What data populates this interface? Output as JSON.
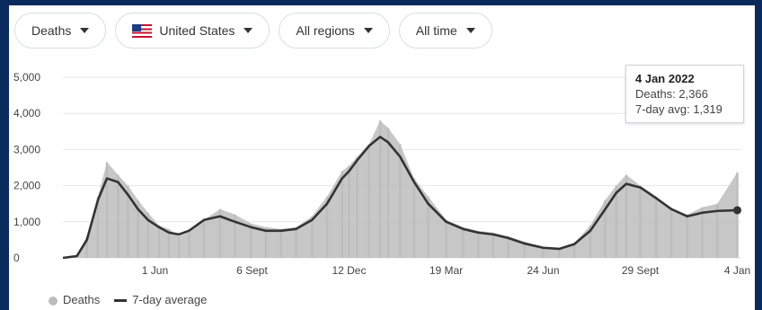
{
  "controls": {
    "metric": "Deaths",
    "country": "United States",
    "region": "All regions",
    "time": "All time"
  },
  "icons": {
    "caret": "chevron-down-icon",
    "flag": "us-flag-icon"
  },
  "colors": {
    "bars": "#bdbdbd",
    "line": "#333333",
    "background_frame": "#0a2a5e"
  },
  "tooltip": {
    "date": "4 Jan 2022",
    "deaths": "Deaths: 2,366",
    "avg": "7-day avg: 1,319"
  },
  "legend": {
    "deaths": "Deaths",
    "avg": "7-day average"
  },
  "chart_data": {
    "type": "bar",
    "series": [
      {
        "name": "Deaths",
        "type": "bar",
        "color": "#bdbdbd",
        "points": [
          [
            "2020-03-01",
            0
          ],
          [
            "2020-03-15",
            80
          ],
          [
            "2020-03-25",
            600
          ],
          [
            "2020-04-05",
            1700
          ],
          [
            "2020-04-14",
            2650
          ],
          [
            "2020-04-25",
            2300
          ],
          [
            "2020-05-05",
            2000
          ],
          [
            "2020-05-15",
            1600
          ],
          [
            "2020-05-25",
            1250
          ],
          [
            "2020-06-05",
            900
          ],
          [
            "2020-06-15",
            800
          ],
          [
            "2020-06-25",
            600
          ],
          [
            "2020-07-05",
            700
          ],
          [
            "2020-07-20",
            1050
          ],
          [
            "2020-08-05",
            1350
          ],
          [
            "2020-08-20",
            1200
          ],
          [
            "2020-09-05",
            950
          ],
          [
            "2020-09-20",
            850
          ],
          [
            "2020-10-05",
            800
          ],
          [
            "2020-10-20",
            850
          ],
          [
            "2020-11-05",
            1150
          ],
          [
            "2020-11-20",
            1700
          ],
          [
            "2020-12-05",
            2400
          ],
          [
            "2020-12-12",
            2550
          ],
          [
            "2020-12-20",
            2800
          ],
          [
            "2021-01-01",
            3150
          ],
          [
            "2021-01-12",
            3800
          ],
          [
            "2021-01-20",
            3600
          ],
          [
            "2021-02-01",
            3150
          ],
          [
            "2021-02-15",
            2200
          ],
          [
            "2021-03-01",
            1700
          ],
          [
            "2021-03-19",
            1050
          ],
          [
            "2021-04-05",
            850
          ],
          [
            "2021-04-20",
            750
          ],
          [
            "2021-05-05",
            700
          ],
          [
            "2021-05-20",
            600
          ],
          [
            "2021-06-05",
            450
          ],
          [
            "2021-06-24",
            300
          ],
          [
            "2021-07-10",
            250
          ],
          [
            "2021-07-25",
            400
          ],
          [
            "2021-08-10",
            900
          ],
          [
            "2021-08-25",
            1600
          ],
          [
            "2021-09-05",
            2000
          ],
          [
            "2021-09-15",
            2300
          ],
          [
            "2021-09-29",
            2000
          ],
          [
            "2021-10-15",
            1700
          ],
          [
            "2021-10-30",
            1350
          ],
          [
            "2021-11-15",
            1200
          ],
          [
            "2021-11-30",
            1400
          ],
          [
            "2021-12-15",
            1500
          ],
          [
            "2022-01-04",
            2366
          ]
        ]
      },
      {
        "name": "7-day average",
        "type": "line",
        "color": "#333333",
        "points": [
          [
            "2020-03-01",
            0
          ],
          [
            "2020-03-15",
            50
          ],
          [
            "2020-03-25",
            500
          ],
          [
            "2020-04-05",
            1600
          ],
          [
            "2020-04-14",
            2200
          ],
          [
            "2020-04-25",
            2100
          ],
          [
            "2020-05-05",
            1750
          ],
          [
            "2020-05-15",
            1350
          ],
          [
            "2020-05-25",
            1050
          ],
          [
            "2020-06-05",
            850
          ],
          [
            "2020-06-15",
            700
          ],
          [
            "2020-06-25",
            650
          ],
          [
            "2020-07-05",
            750
          ],
          [
            "2020-07-20",
            1050
          ],
          [
            "2020-08-05",
            1150
          ],
          [
            "2020-08-20",
            1000
          ],
          [
            "2020-09-05",
            850
          ],
          [
            "2020-09-20",
            750
          ],
          [
            "2020-10-05",
            750
          ],
          [
            "2020-10-20",
            800
          ],
          [
            "2020-11-05",
            1050
          ],
          [
            "2020-11-20",
            1500
          ],
          [
            "2020-12-05",
            2200
          ],
          [
            "2020-12-12",
            2400
          ],
          [
            "2020-12-20",
            2700
          ],
          [
            "2021-01-01",
            3100
          ],
          [
            "2021-01-12",
            3350
          ],
          [
            "2021-01-20",
            3200
          ],
          [
            "2021-02-01",
            2800
          ],
          [
            "2021-02-15",
            2100
          ],
          [
            "2021-03-01",
            1500
          ],
          [
            "2021-03-19",
            1000
          ],
          [
            "2021-04-05",
            800
          ],
          [
            "2021-04-20",
            700
          ],
          [
            "2021-05-05",
            650
          ],
          [
            "2021-05-20",
            550
          ],
          [
            "2021-06-05",
            400
          ],
          [
            "2021-06-24",
            280
          ],
          [
            "2021-07-10",
            250
          ],
          [
            "2021-07-25",
            380
          ],
          [
            "2021-08-10",
            750
          ],
          [
            "2021-08-25",
            1350
          ],
          [
            "2021-09-05",
            1800
          ],
          [
            "2021-09-15",
            2050
          ],
          [
            "2021-09-29",
            1950
          ],
          [
            "2021-10-15",
            1650
          ],
          [
            "2021-10-30",
            1350
          ],
          [
            "2021-11-15",
            1150
          ],
          [
            "2021-11-30",
            1250
          ],
          [
            "2021-12-15",
            1300
          ],
          [
            "2022-01-04",
            1319
          ]
        ]
      }
    ],
    "title": "",
    "xlabel": "",
    "ylabel": "",
    "ylim": [
      0,
      5000
    ],
    "y_ticks": [
      "0",
      "1,000",
      "2,000",
      "3,000",
      "4,000",
      "5,000"
    ],
    "x_ticks": [
      {
        "date": "2020-06-01",
        "label": "1 Jun"
      },
      {
        "date": "2020-09-06",
        "label": "6 Sept"
      },
      {
        "date": "2020-12-12",
        "label": "12 Dec"
      },
      {
        "date": "2021-03-19",
        "label": "19 Mar"
      },
      {
        "date": "2021-06-24",
        "label": "24 Jun"
      },
      {
        "date": "2021-09-29",
        "label": "29 Sept"
      },
      {
        "date": "2022-01-04",
        "label": "4 Jan"
      }
    ],
    "xlim": [
      "2020-03-01",
      "2022-01-08"
    ],
    "grid": true,
    "legend_position": "bottom-left"
  }
}
